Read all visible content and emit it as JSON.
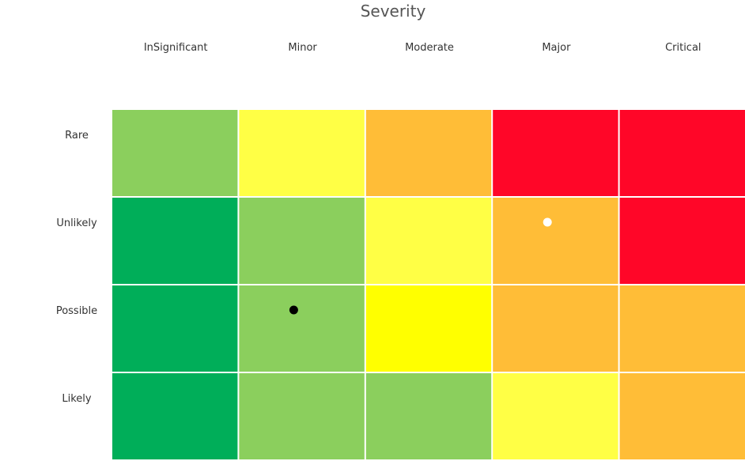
{
  "chart_data": {
    "type": "heatmap",
    "title": "Severity",
    "columns": [
      "InSignificant",
      "Minor",
      "Moderate",
      "Major",
      "Critical"
    ],
    "rows": [
      "Rare",
      "Unlikely",
      "Possible",
      "Likely"
    ],
    "cell_colors": [
      [
        "#8BCF5D",
        "#FFFF45",
        "#FFBD37",
        "#FF0628",
        "#FF0628"
      ],
      [
        "#00AE59",
        "#8BCF5D",
        "#FFFF45",
        "#FFBD37",
        "#FF0628"
      ],
      [
        "#00AE59",
        "#8BCF5D",
        "#FFFF00",
        "#FFBD37",
        "#FFBD37"
      ],
      [
        "#00AE59",
        "#8BCF5D",
        "#8BCF5D",
        "#FFFF45",
        "#FFBD37"
      ]
    ],
    "markers": [
      {
        "column": "Major",
        "row": "Unlikely",
        "color": "#ffffff"
      },
      {
        "column": "Minor",
        "row": "Possible",
        "color": "#000000"
      }
    ],
    "grid_line_color": "#ffffff"
  }
}
